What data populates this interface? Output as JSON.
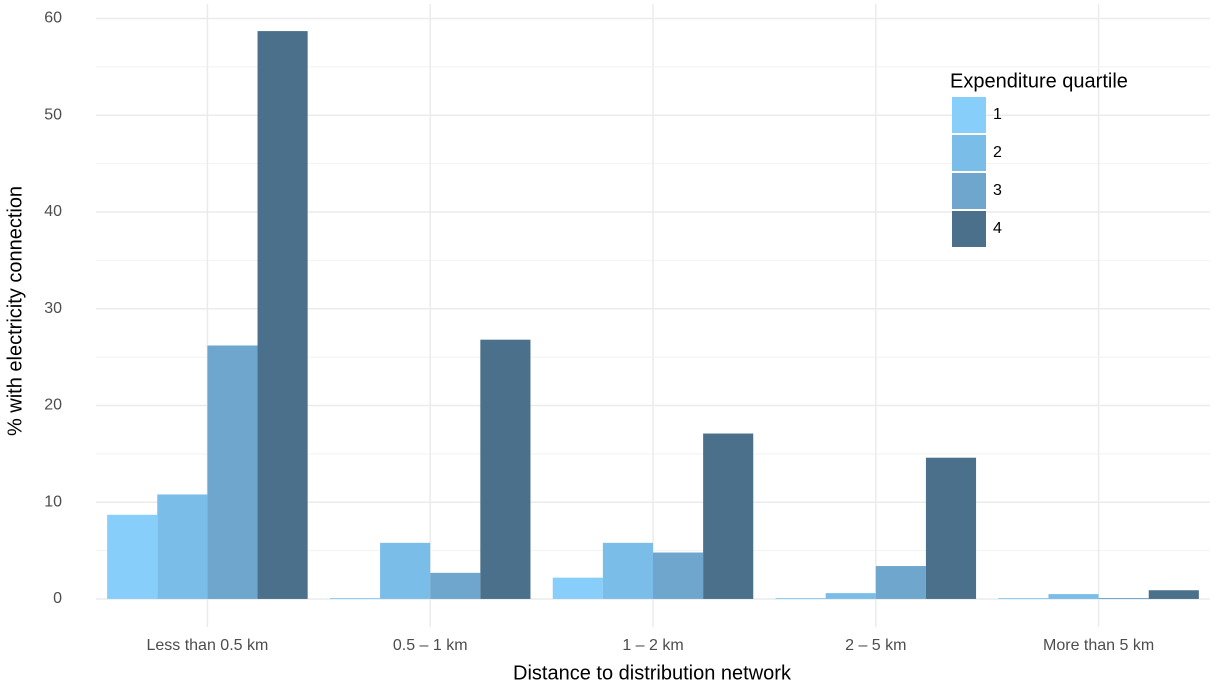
{
  "chart_data": {
    "type": "bar",
    "x_label": "Distance to distribution network",
    "y_label": "% with electricity connection",
    "categories": [
      "Less than 0.5 km",
      "0.5 – 1 km",
      "1 – 2 km",
      "2 – 5 km",
      "More than 5 km"
    ],
    "legend_title": "Expenditure quartile",
    "series": [
      {
        "name": "1",
        "color": "#87cefa",
        "values": [
          8.7,
          0.1,
          2.2,
          0.1,
          0.1
        ]
      },
      {
        "name": "2",
        "color": "#7bbde9",
        "values": [
          10.8,
          5.8,
          5.8,
          0.6,
          0.5
        ]
      },
      {
        "name": "3",
        "color": "#6ea6cd",
        "values": [
          26.2,
          2.7,
          4.8,
          3.4,
          0.1
        ]
      },
      {
        "name": "4",
        "color": "#4a708b",
        "values": [
          58.7,
          26.8,
          17.1,
          14.6,
          0.9
        ]
      }
    ],
    "ylim": [
      -2.9,
      61.5
    ],
    "yticks": [
      0,
      10,
      20,
      30,
      40,
      50,
      60
    ],
    "grid": true,
    "legend_position": "top-right"
  }
}
